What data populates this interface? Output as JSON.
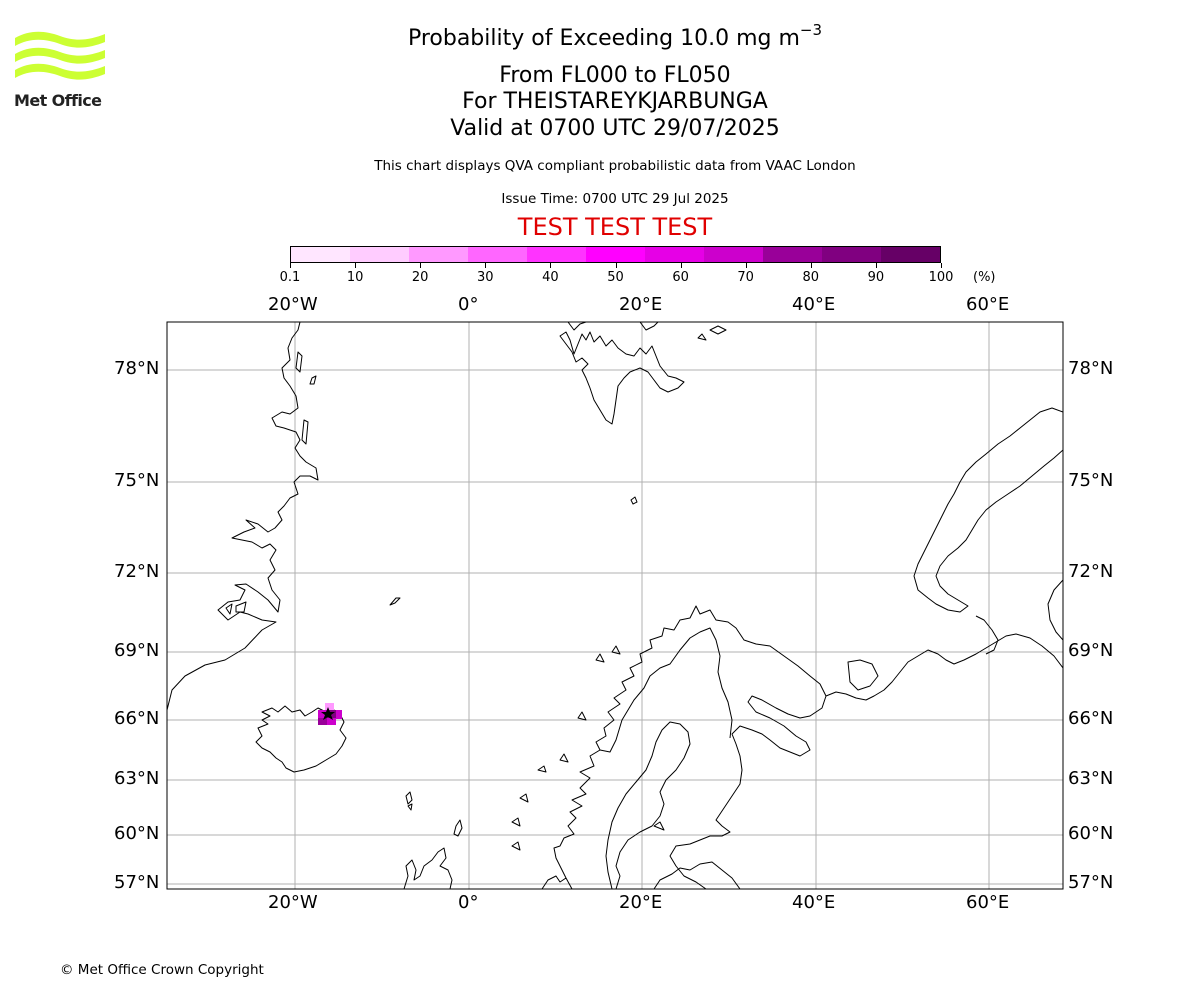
{
  "title": {
    "line1_prefix": "Probability of Exceeding 10.0 mg m",
    "line1_sup": "−3",
    "line2": "From FL000 to FL050",
    "line3": "For THEISTAREYKJARBUNGA",
    "line4": "Valid at 0700 UTC 29/07/2025"
  },
  "subtitle": "This chart displays QVA compliant probabilistic data from VAAC London",
  "issue_time": "Issue Time: 0700 UTC 29 Jul 2025",
  "test_banner": "TEST TEST TEST",
  "test_color": "#e00000",
  "logo": {
    "text": "Met Office",
    "color": "#ccff33"
  },
  "colorbar": {
    "labels": [
      "0.1",
      "10",
      "20",
      "30",
      "40",
      "50",
      "60",
      "70",
      "80",
      "90",
      "100"
    ],
    "colors": [
      "#ffe6ff",
      "#ffccff",
      "#ff99ff",
      "#ff66ff",
      "#ff33ff",
      "#ff00ff",
      "#e600e6",
      "#cc00cc",
      "#990099",
      "#800080",
      "#660066"
    ],
    "unit": "(%)"
  },
  "map": {
    "longitude_labels": [
      "20°W",
      "0°",
      "20°E",
      "40°E",
      "60°E"
    ],
    "latitude_labels": [
      "78°N",
      "75°N",
      "72°N",
      "69°N",
      "66°N",
      "63°N",
      "60°N",
      "57°N"
    ],
    "ash_probability_region": "Northern Iceland near Theistareykjarbunga",
    "gridline_color": "#b0b0b0"
  },
  "copyright": "© Met Office Crown Copyright"
}
